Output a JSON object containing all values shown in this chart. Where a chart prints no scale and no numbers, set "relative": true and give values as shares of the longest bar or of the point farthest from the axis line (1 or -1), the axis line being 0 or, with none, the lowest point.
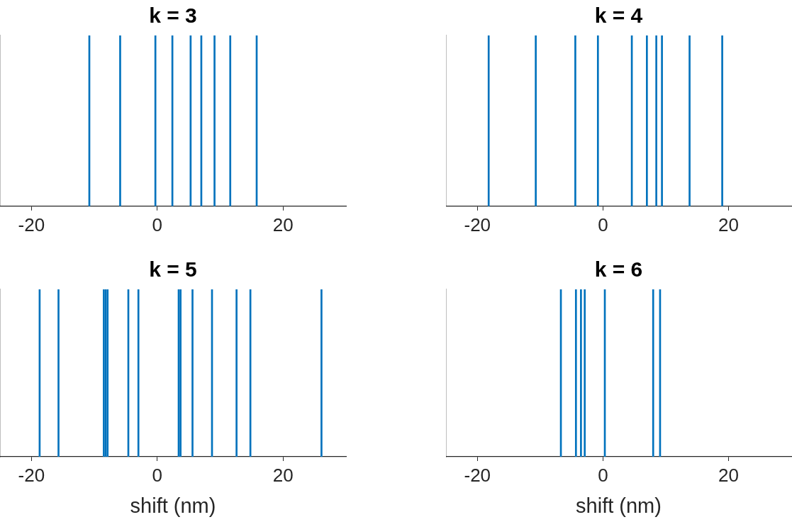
{
  "chart_data": [
    {
      "type": "bar",
      "title": "k = 3",
      "x": [
        -10.8,
        -5.9,
        -0.3,
        2.4,
        5.3,
        7.0,
        9.1,
        11.6,
        15.8
      ],
      "values": [
        1,
        1,
        1,
        1,
        1,
        1,
        1,
        1,
        1
      ],
      "color": "#0072bd",
      "relative": true,
      "xlim": [
        -25,
        30
      ],
      "xticks": [
        -20,
        0,
        20
      ],
      "tick_labels": "x"
    },
    {
      "type": "bar",
      "title": "k = 4",
      "x": [
        -18.2,
        -10.7,
        -4.4,
        -0.8,
        4.6,
        7.0,
        8.5,
        9.4,
        13.8,
        19.0
      ],
      "values": [
        1,
        1,
        1,
        1,
        1,
        1,
        1,
        1,
        1,
        1
      ],
      "color": "#0072bd",
      "relative": true,
      "xlim": [
        -25,
        30
      ],
      "xticks": [
        -20,
        0,
        20
      ],
      "tick_labels": "x"
    },
    {
      "type": "bar",
      "title": "k = 5",
      "xlabel": "shift (nm)",
      "x": [
        -18.7,
        -15.7,
        -8.5,
        -8.2,
        -7.9,
        -4.6,
        -3.0,
        3.4,
        3.7,
        5.6,
        8.7,
        12.6,
        14.8,
        26.1
      ],
      "values": [
        1,
        1,
        1,
        1,
        1,
        1,
        1,
        1,
        1,
        1,
        1,
        1,
        1,
        1
      ],
      "color": "#0072bd",
      "relative": true,
      "xlim": [
        -25,
        30
      ],
      "xticks": [
        -20,
        0,
        20
      ],
      "tick_labels": "x"
    },
    {
      "type": "bar",
      "title": "k = 6",
      "xlabel": "shift (nm)",
      "x": [
        -6.7,
        -4.3,
        -3.5,
        -2.9,
        0.3,
        8.0,
        9.1
      ],
      "values": [
        1,
        1,
        1,
        1,
        1,
        1,
        1
      ],
      "color": "#0072bd",
      "relative": true,
      "xlim": [
        -25,
        30
      ],
      "xticks": [
        -20,
        0,
        20
      ],
      "tick_labels": "x"
    }
  ]
}
